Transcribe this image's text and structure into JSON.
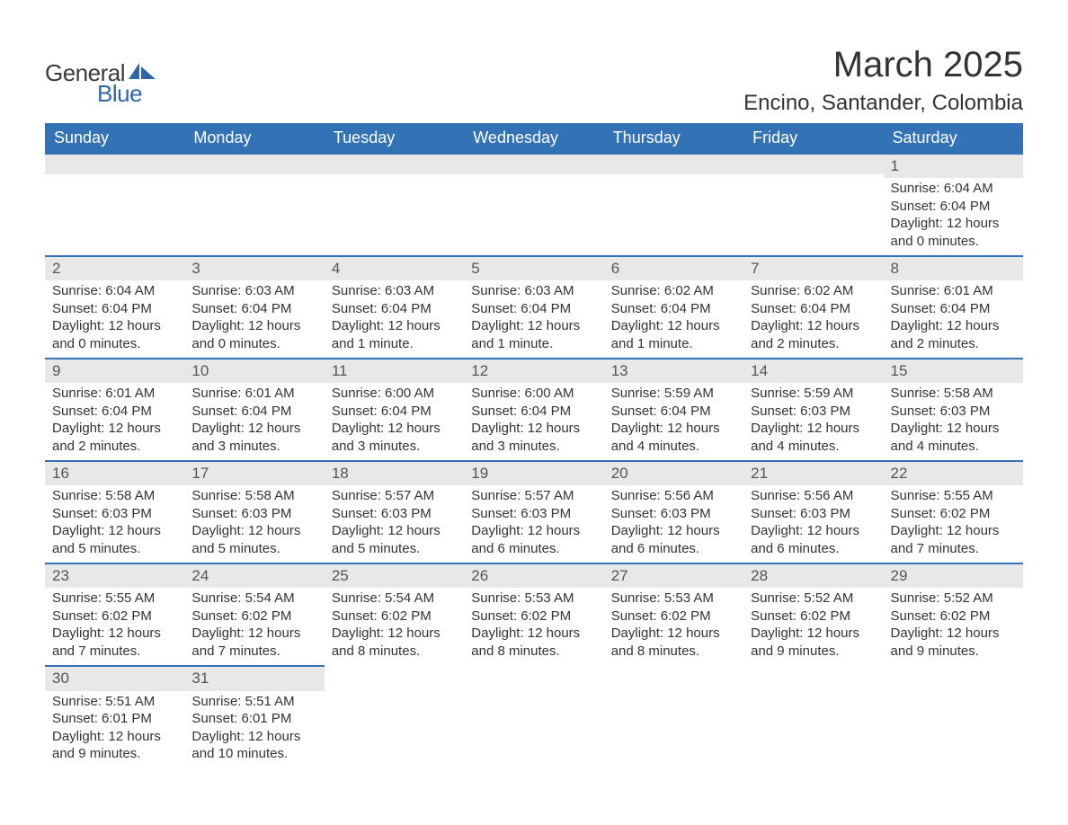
{
  "brand": {
    "word1": "General",
    "word2": "Blue",
    "logo_color": "#3166a6"
  },
  "title": "March 2025",
  "location": "Encino, Santander, Colombia",
  "theme": {
    "header_bg": "#3472b6",
    "header_text": "#ffffff",
    "daybar_bg": "#e8e8e8",
    "daybar_border": "#3472b6",
    "body_text": "#333333",
    "page_bg": "#ffffff"
  },
  "day_headers": [
    "Sunday",
    "Monday",
    "Tuesday",
    "Wednesday",
    "Thursday",
    "Friday",
    "Saturday"
  ],
  "weeks": [
    [
      null,
      null,
      null,
      null,
      null,
      null,
      {
        "n": "1",
        "sunrise": "Sunrise: 6:04 AM",
        "sunset": "Sunset: 6:04 PM",
        "daylight": "Daylight: 12 hours and 0 minutes."
      }
    ],
    [
      {
        "n": "2",
        "sunrise": "Sunrise: 6:04 AM",
        "sunset": "Sunset: 6:04 PM",
        "daylight": "Daylight: 12 hours and 0 minutes."
      },
      {
        "n": "3",
        "sunrise": "Sunrise: 6:03 AM",
        "sunset": "Sunset: 6:04 PM",
        "daylight": "Daylight: 12 hours and 0 minutes."
      },
      {
        "n": "4",
        "sunrise": "Sunrise: 6:03 AM",
        "sunset": "Sunset: 6:04 PM",
        "daylight": "Daylight: 12 hours and 1 minute."
      },
      {
        "n": "5",
        "sunrise": "Sunrise: 6:03 AM",
        "sunset": "Sunset: 6:04 PM",
        "daylight": "Daylight: 12 hours and 1 minute."
      },
      {
        "n": "6",
        "sunrise": "Sunrise: 6:02 AM",
        "sunset": "Sunset: 6:04 PM",
        "daylight": "Daylight: 12 hours and 1 minute."
      },
      {
        "n": "7",
        "sunrise": "Sunrise: 6:02 AM",
        "sunset": "Sunset: 6:04 PM",
        "daylight": "Daylight: 12 hours and 2 minutes."
      },
      {
        "n": "8",
        "sunrise": "Sunrise: 6:01 AM",
        "sunset": "Sunset: 6:04 PM",
        "daylight": "Daylight: 12 hours and 2 minutes."
      }
    ],
    [
      {
        "n": "9",
        "sunrise": "Sunrise: 6:01 AM",
        "sunset": "Sunset: 6:04 PM",
        "daylight": "Daylight: 12 hours and 2 minutes."
      },
      {
        "n": "10",
        "sunrise": "Sunrise: 6:01 AM",
        "sunset": "Sunset: 6:04 PM",
        "daylight": "Daylight: 12 hours and 3 minutes."
      },
      {
        "n": "11",
        "sunrise": "Sunrise: 6:00 AM",
        "sunset": "Sunset: 6:04 PM",
        "daylight": "Daylight: 12 hours and 3 minutes."
      },
      {
        "n": "12",
        "sunrise": "Sunrise: 6:00 AM",
        "sunset": "Sunset: 6:04 PM",
        "daylight": "Daylight: 12 hours and 3 minutes."
      },
      {
        "n": "13",
        "sunrise": "Sunrise: 5:59 AM",
        "sunset": "Sunset: 6:04 PM",
        "daylight": "Daylight: 12 hours and 4 minutes."
      },
      {
        "n": "14",
        "sunrise": "Sunrise: 5:59 AM",
        "sunset": "Sunset: 6:03 PM",
        "daylight": "Daylight: 12 hours and 4 minutes."
      },
      {
        "n": "15",
        "sunrise": "Sunrise: 5:58 AM",
        "sunset": "Sunset: 6:03 PM",
        "daylight": "Daylight: 12 hours and 4 minutes."
      }
    ],
    [
      {
        "n": "16",
        "sunrise": "Sunrise: 5:58 AM",
        "sunset": "Sunset: 6:03 PM",
        "daylight": "Daylight: 12 hours and 5 minutes."
      },
      {
        "n": "17",
        "sunrise": "Sunrise: 5:58 AM",
        "sunset": "Sunset: 6:03 PM",
        "daylight": "Daylight: 12 hours and 5 minutes."
      },
      {
        "n": "18",
        "sunrise": "Sunrise: 5:57 AM",
        "sunset": "Sunset: 6:03 PM",
        "daylight": "Daylight: 12 hours and 5 minutes."
      },
      {
        "n": "19",
        "sunrise": "Sunrise: 5:57 AM",
        "sunset": "Sunset: 6:03 PM",
        "daylight": "Daylight: 12 hours and 6 minutes."
      },
      {
        "n": "20",
        "sunrise": "Sunrise: 5:56 AM",
        "sunset": "Sunset: 6:03 PM",
        "daylight": "Daylight: 12 hours and 6 minutes."
      },
      {
        "n": "21",
        "sunrise": "Sunrise: 5:56 AM",
        "sunset": "Sunset: 6:03 PM",
        "daylight": "Daylight: 12 hours and 6 minutes."
      },
      {
        "n": "22",
        "sunrise": "Sunrise: 5:55 AM",
        "sunset": "Sunset: 6:02 PM",
        "daylight": "Daylight: 12 hours and 7 minutes."
      }
    ],
    [
      {
        "n": "23",
        "sunrise": "Sunrise: 5:55 AM",
        "sunset": "Sunset: 6:02 PM",
        "daylight": "Daylight: 12 hours and 7 minutes."
      },
      {
        "n": "24",
        "sunrise": "Sunrise: 5:54 AM",
        "sunset": "Sunset: 6:02 PM",
        "daylight": "Daylight: 12 hours and 7 minutes."
      },
      {
        "n": "25",
        "sunrise": "Sunrise: 5:54 AM",
        "sunset": "Sunset: 6:02 PM",
        "daylight": "Daylight: 12 hours and 8 minutes."
      },
      {
        "n": "26",
        "sunrise": "Sunrise: 5:53 AM",
        "sunset": "Sunset: 6:02 PM",
        "daylight": "Daylight: 12 hours and 8 minutes."
      },
      {
        "n": "27",
        "sunrise": "Sunrise: 5:53 AM",
        "sunset": "Sunset: 6:02 PM",
        "daylight": "Daylight: 12 hours and 8 minutes."
      },
      {
        "n": "28",
        "sunrise": "Sunrise: 5:52 AM",
        "sunset": "Sunset: 6:02 PM",
        "daylight": "Daylight: 12 hours and 9 minutes."
      },
      {
        "n": "29",
        "sunrise": "Sunrise: 5:52 AM",
        "sunset": "Sunset: 6:02 PM",
        "daylight": "Daylight: 12 hours and 9 minutes."
      }
    ],
    [
      {
        "n": "30",
        "sunrise": "Sunrise: 5:51 AM",
        "sunset": "Sunset: 6:01 PM",
        "daylight": "Daylight: 12 hours and 9 minutes."
      },
      {
        "n": "31",
        "sunrise": "Sunrise: 5:51 AM",
        "sunset": "Sunset: 6:01 PM",
        "daylight": "Daylight: 12 hours and 10 minutes."
      },
      null,
      null,
      null,
      null,
      null
    ]
  ]
}
